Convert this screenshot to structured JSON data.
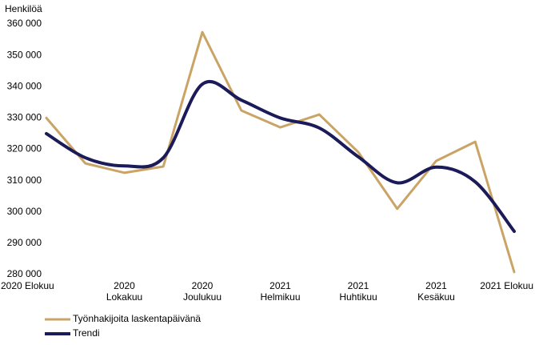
{
  "chart_data": {
    "type": "line",
    "y_label": "Henkilöä",
    "categories": [
      "2020 Elokuu",
      null,
      "2020\nLokakuu",
      null,
      "2020\nJoulukuu",
      null,
      "2021\nHelmikuu",
      null,
      "2021\nHuhtikuu",
      null,
      "2021\nKesäkuu",
      null,
      "2021 Elokuu"
    ],
    "series": [
      {
        "name": "Työnhakijoita laskentapäivänä",
        "color": "#c9a465",
        "smooth": false,
        "values": [
          330000,
          315500,
          312500,
          314500,
          357400,
          332400,
          327000,
          331100,
          319100,
          301000,
          316300,
          322400,
          280800
        ]
      },
      {
        "name": "Trendi",
        "color": "#1c1b5a",
        "smooth": true,
        "values": [
          325000,
          317300,
          314700,
          317300,
          340800,
          335700,
          330000,
          326800,
          317600,
          309300,
          314300,
          309600,
          293800
        ]
      }
    ],
    "ylim": [
      280000,
      360000
    ],
    "yticks": [
      {
        "value": 280000,
        "label": "280 000"
      },
      {
        "value": 290000,
        "label": "290 000"
      },
      {
        "value": 300000,
        "label": "300 000"
      },
      {
        "value": 310000,
        "label": "310 000"
      },
      {
        "value": 320000,
        "label": "320 000"
      },
      {
        "value": 330000,
        "label": "330 000"
      },
      {
        "value": 340000,
        "label": "340 000"
      },
      {
        "value": 350000,
        "label": "350 000"
      },
      {
        "value": 360000,
        "label": "360 000"
      }
    ],
    "grid": false,
    "legend": "bottom-left"
  }
}
